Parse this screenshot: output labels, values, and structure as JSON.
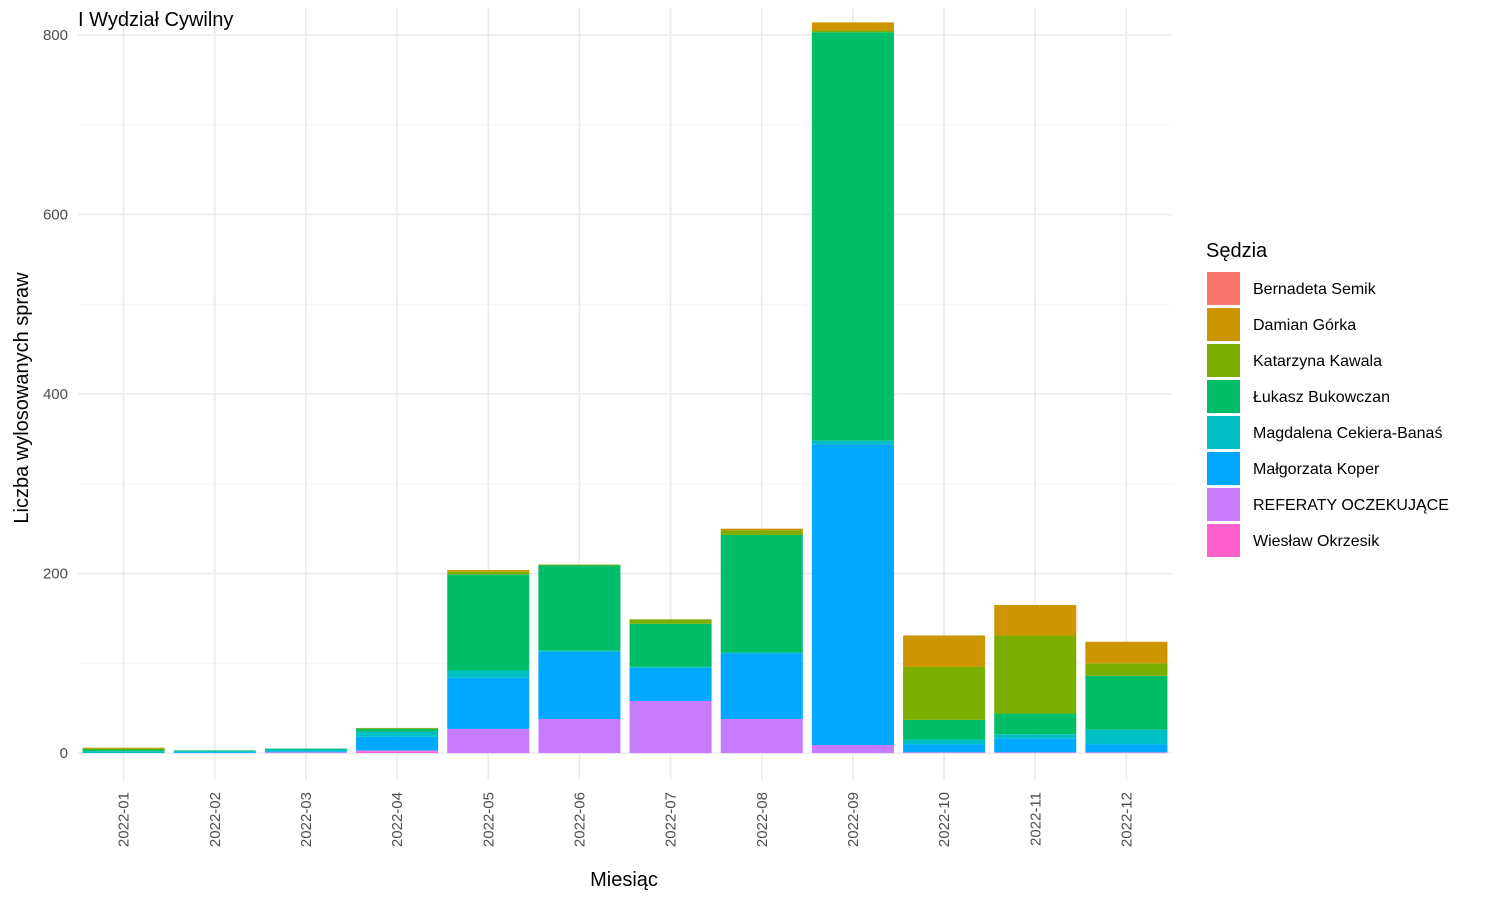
{
  "chart_data": {
    "type": "bar",
    "stacked": true,
    "title": "I Wydział Cywilny",
    "xlabel": "Miesiąc",
    "ylabel": "Liczba wylosowanych spraw",
    "ylim": [
      -30,
      830
    ],
    "yticks": [
      0,
      200,
      400,
      600,
      800
    ],
    "grid": true,
    "legend_position": "right",
    "legend_title": "Sędzia",
    "categories": [
      "2022-01",
      "2022-02",
      "2022-03",
      "2022-04",
      "2022-05",
      "2022-06",
      "2022-07",
      "2022-08",
      "2022-09",
      "2022-10",
      "2022-11",
      "2022-12"
    ],
    "series": [
      {
        "name": "Bernadeta Semik",
        "color": "#F8766D",
        "values": [
          0,
          0,
          0,
          0,
          0,
          0,
          0,
          0,
          0,
          0,
          0,
          0
        ]
      },
      {
        "name": "Damian Górka",
        "color": "#CD9600",
        "values": [
          1,
          0,
          0,
          0,
          2,
          0,
          0,
          2,
          9,
          35,
          34,
          24
        ]
      },
      {
        "name": "Katarzyna Kawala",
        "color": "#7CAE00",
        "values": [
          1,
          0,
          0,
          1,
          3,
          1,
          5,
          5,
          2,
          59,
          87,
          14
        ]
      },
      {
        "name": "Łukasz Bukowczan",
        "color": "#00BE67",
        "values": [
          2,
          1,
          1,
          3,
          107,
          95,
          48,
          131,
          455,
          22,
          23,
          60
        ]
      },
      {
        "name": "Magdalena Cekiera-Banaś",
        "color": "#00BFC4",
        "values": [
          2,
          1,
          2,
          6,
          8,
          1,
          1,
          1,
          4,
          5,
          5,
          16
        ]
      },
      {
        "name": "Małgorzata Koper",
        "color": "#00A9FF",
        "values": [
          0,
          1,
          1,
          15,
          57,
          75,
          37,
          73,
          335,
          9,
          15,
          9
        ]
      },
      {
        "name": "REFERATY OCZEKUJĄCE",
        "color": "#C77CFF",
        "values": [
          0,
          0,
          1,
          1,
          27,
          38,
          58,
          38,
          9,
          1,
          1,
          1
        ]
      },
      {
        "name": "Wiesław Okrzesik",
        "color": "#FF61CC",
        "values": [
          0,
          0,
          0,
          2,
          0,
          0,
          0,
          0,
          0,
          0,
          0,
          0
        ]
      }
    ]
  }
}
